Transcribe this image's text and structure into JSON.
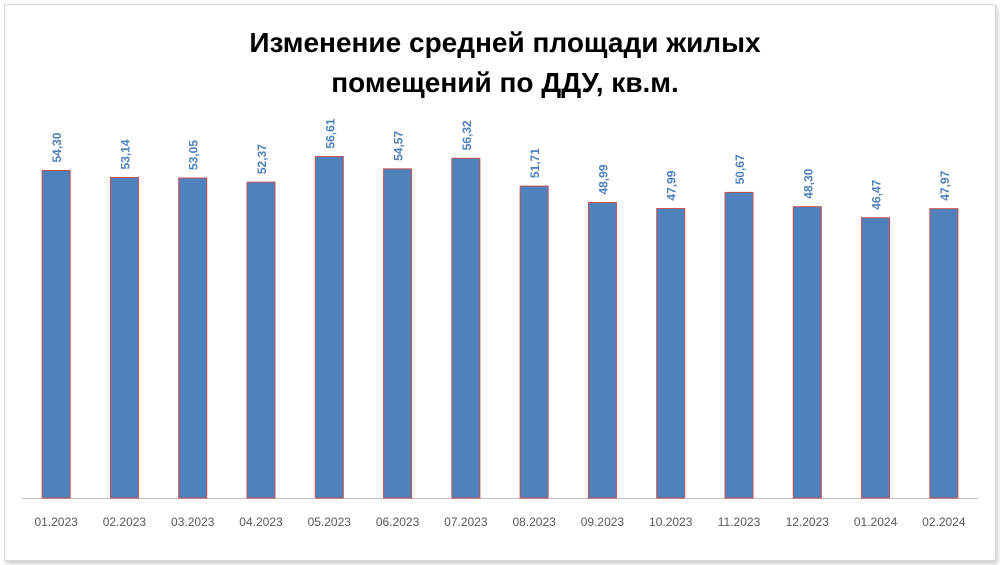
{
  "chart_data": {
    "type": "bar",
    "title_line1": "Изменение средней площади жилых",
    "title_line2": "помещений по ДДУ, кв.м.",
    "categories": [
      "01.2023",
      "02.2023",
      "03.2023",
      "04.2023",
      "05.2023",
      "06.2023",
      "07.2023",
      "08.2023",
      "09.2023",
      "10.2023",
      "11.2023",
      "12.2023",
      "01.2024",
      "02.2024"
    ],
    "values": [
      54.3,
      53.14,
      53.05,
      52.37,
      56.61,
      54.57,
      56.32,
      51.71,
      48.99,
      47.99,
      50.67,
      48.3,
      46.47,
      47.97
    ],
    "data_labels": [
      "54,30",
      "53,14",
      "53,05",
      "52,37",
      "56,61",
      "54,57",
      "56,32",
      "51,71",
      "48,99",
      "47,99",
      "50,67",
      "48,30",
      "46,47",
      "47,97"
    ],
    "ylim": [
      0,
      64
    ],
    "grid": false,
    "legend": "none",
    "colors": {
      "bar_fill": "#4F81BD",
      "bar_stroke": "#C0504D",
      "label": "#4F81BD",
      "axis": "#bfbfbf",
      "tick_label": "#595959"
    }
  }
}
